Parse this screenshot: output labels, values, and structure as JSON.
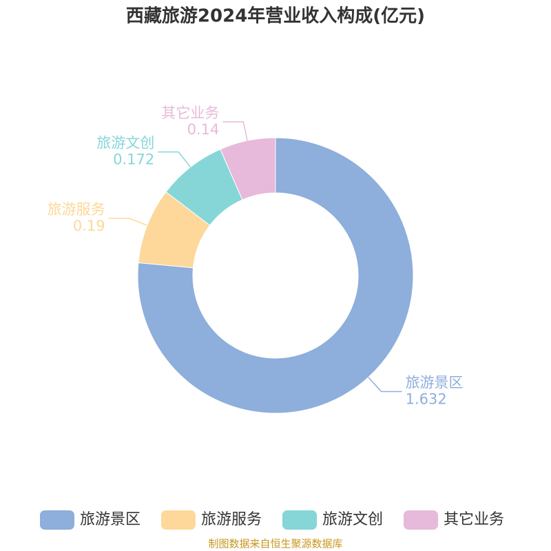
{
  "chart_data": {
    "type": "pie",
    "title": "西藏旅游2024年营业收入构成(亿元)",
    "categories": [
      "旅游景区",
      "旅游服务",
      "旅游文创",
      "其它业务"
    ],
    "values": [
      1.632,
      0.19,
      0.172,
      0.14
    ],
    "colors": [
      "#8eaedb",
      "#fdd89a",
      "#86d6d8",
      "#e7b9da"
    ],
    "source": "制图数据来自恒生聚源数据库"
  }
}
